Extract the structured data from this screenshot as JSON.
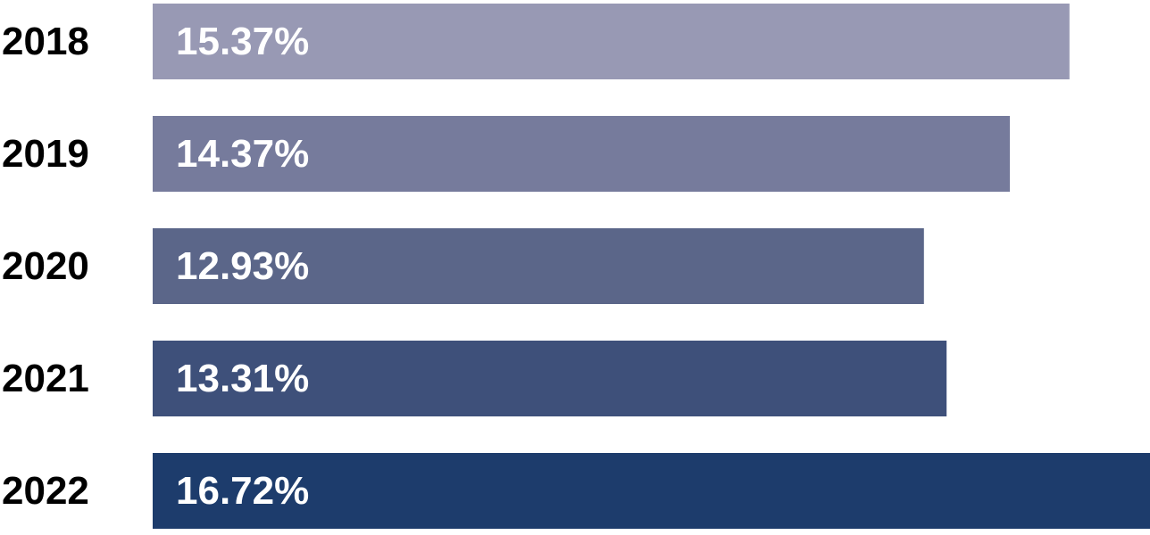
{
  "chart_data": {
    "type": "bar",
    "orientation": "horizontal",
    "categories": [
      "2018",
      "2019",
      "2020",
      "2021",
      "2022"
    ],
    "values": [
      15.37,
      14.37,
      12.93,
      13.31,
      16.72
    ],
    "value_labels": [
      "15.37%",
      "14.37%",
      "12.93%",
      "13.31%",
      "16.72%"
    ],
    "colors": [
      "#9899b4",
      "#767b9c",
      "#5b6689",
      "#3e507a",
      "#1d3c6c"
    ]
  }
}
